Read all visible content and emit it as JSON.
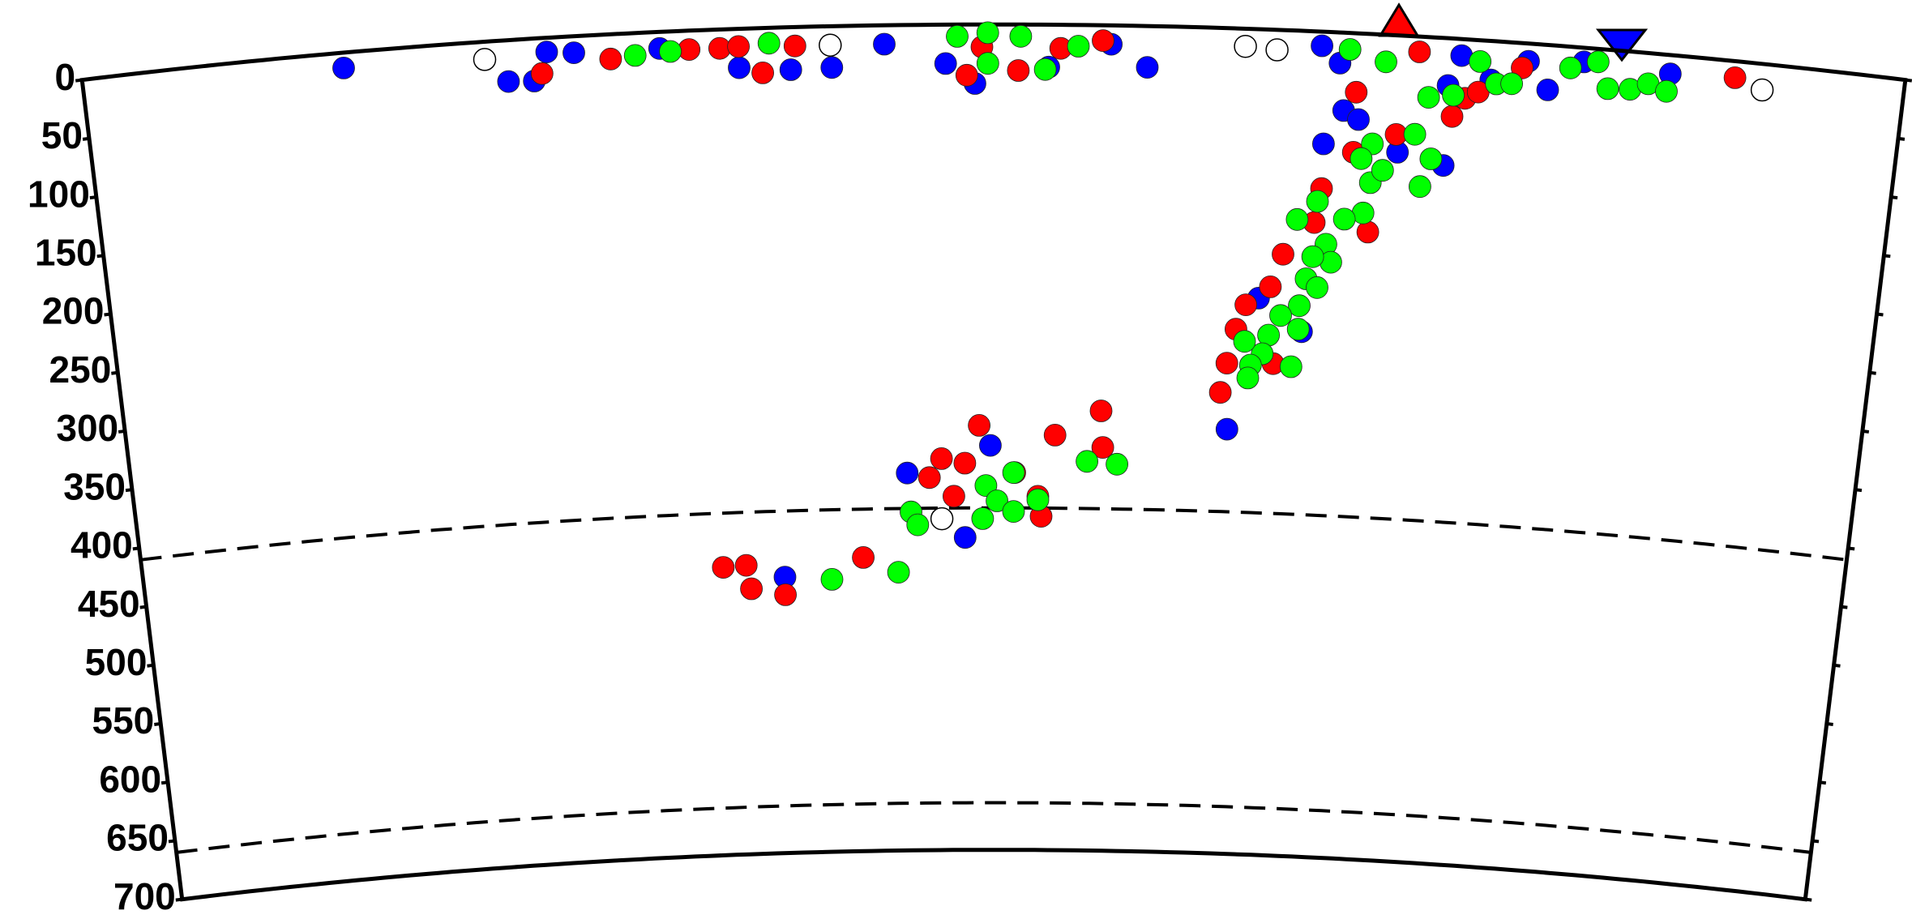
{
  "chart_data": {
    "type": "scatter",
    "xlim": [
      0,
      1550
    ],
    "ylim": [
      0,
      700
    ],
    "yticks": [
      0,
      50,
      100,
      150,
      200,
      250,
      300,
      350,
      400,
      450,
      500,
      550,
      600,
      650,
      700
    ],
    "dashed_depths": [
      410,
      660
    ],
    "series": [
      {
        "color": "#ffffff",
        "x": [
          342,
          636,
          989,
          1016,
          1430,
          728
        ],
        "values": [
          15,
          16,
          15,
          17,
          22,
          419
        ]
      },
      {
        "color": "#0000ff",
        "x": [
          222,
          361,
          383,
          395,
          418,
          491,
          558,
          602,
          637,
          682,
          734,
          759,
          822,
          875,
          906,
          1054,
          1070,
          1075,
          1059,
          1088,
          1123,
          1163,
          1163,
          1173,
          1199,
          1230,
          1248,
          1277,
          1351,
          1047,
          984,
          1008,
          772,
          697,
          749,
          584
        ],
        "values": [
          13,
          35,
          36,
          12,
          14,
          14,
          33,
          36,
          35,
          16,
          33,
          50,
          36,
          16,
          35,
          12,
          26,
          66,
          95,
          73,
          99,
          108,
          40,
          14,
          33,
          15,
          38,
          12,
          16,
          255,
          340,
          228,
          357,
          380,
          435,
          466
        ]
      },
      {
        "color": "#ff0000",
        "x": [
          390,
          449,
          516,
          542,
          558,
          578,
          606,
          752,
          765,
          796,
          832,
          868,
          1085,
          1085,
          1101,
          1059,
          1028,
          1018,
          997,
          989,
          982,
          977,
          1023,
          1054,
          1121,
          1137,
          1168,
          1178,
          1189,
          1225,
          1406,
          762,
          717,
          728,
          749,
          739,
          794,
          818,
          830,
          871,
          873,
          528,
          549,
          553,
          584,
          656,
          815
        ],
        "values": [
          30,
          21,
          16,
          16,
          15,
          38,
          16,
          43,
          19,
          39,
          20,
          13,
          50,
          101,
          168,
          133,
          190,
          218,
          234,
          255,
          284,
          309,
          283,
          162,
          84,
          13,
          66,
          50,
          44,
          21,
          14,
          340,
          384,
          368,
          372,
          400,
          380,
          417,
          348,
          327,
          358,
          456,
          455,
          475,
          481,
          451,
          400
        ]
      },
      {
        "color": "#00ff00",
        "x": [
          470,
          500,
          584,
          744,
          770,
          770,
          798,
          819,
          847,
          1078,
          1109,
          1147,
          1168,
          1189,
          1204,
          1217,
          1266,
          1289,
          1299,
          1318,
          1333,
          1349,
          1137,
          1152,
          1144,
          1101,
          1101,
          1096,
          1080,
          1065,
          1070,
          1054,
          1049,
          1044,
          1028,
          1018,
          1013,
          1003,
          997,
          1059,
          1044,
          1056,
          1039,
          1111,
          1092,
          1039,
          1001,
          859,
          886,
          793,
          768,
          778,
          793,
          765,
          815,
          700,
          706,
          627,
          688
        ],
        "values": [
          19,
          17,
          13,
          10,
          7,
          33,
          10,
          38,
          18,
          14,
          23,
          51,
          48,
          18,
          36,
          35,
          18,
          11,
          33,
          32,
          26,
          31,
          83,
          103,
          127,
          93,
          126,
          152,
          158,
          180,
          195,
          191,
          210,
          233,
          242,
          259,
          275,
          285,
          265,
          217,
          253,
          144,
          160,
          115,
          106,
          285,
          296,
          370,
          372,
          380,
          391,
          404,
          413,
          419,
          403,
          413,
          424,
          469,
          464
        ]
      }
    ]
  }
}
